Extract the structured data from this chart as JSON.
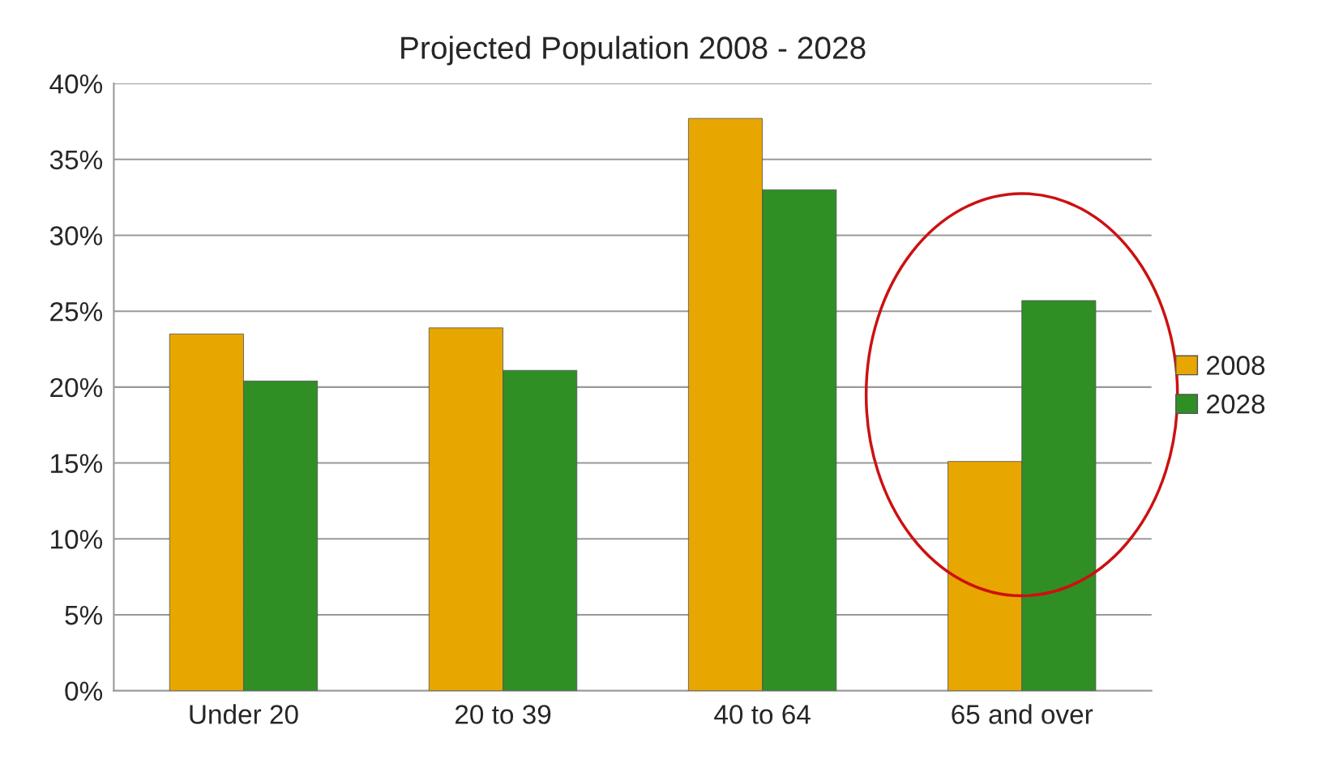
{
  "chart_data": {
    "type": "bar",
    "title": "Projected Population 2008 - 2028",
    "categories": [
      "Under 20",
      "20 to 39",
      "40 to 64",
      "65 and over"
    ],
    "series": [
      {
        "name": "2008",
        "color": "#e8a600",
        "values": [
          23.5,
          23.9,
          37.7,
          15.1
        ]
      },
      {
        "name": "2028",
        "color": "#2f8f25",
        "values": [
          20.4,
          21.1,
          33.0,
          25.7
        ]
      }
    ],
    "ylim": [
      0,
      40
    ],
    "yticks": [
      {
        "value": 0,
        "label": "0%"
      },
      {
        "value": 5,
        "label": "5%"
      },
      {
        "value": 10,
        "label": "10%"
      },
      {
        "value": 15,
        "label": "15%"
      },
      {
        "value": 20,
        "label": "20%"
      },
      {
        "value": 25,
        "label": "25%"
      },
      {
        "value": 30,
        "label": "30%"
      },
      {
        "value": 35,
        "label": "35%"
      },
      {
        "value": 40,
        "label": "40%"
      }
    ],
    "grid": "y",
    "legend": "right"
  }
}
